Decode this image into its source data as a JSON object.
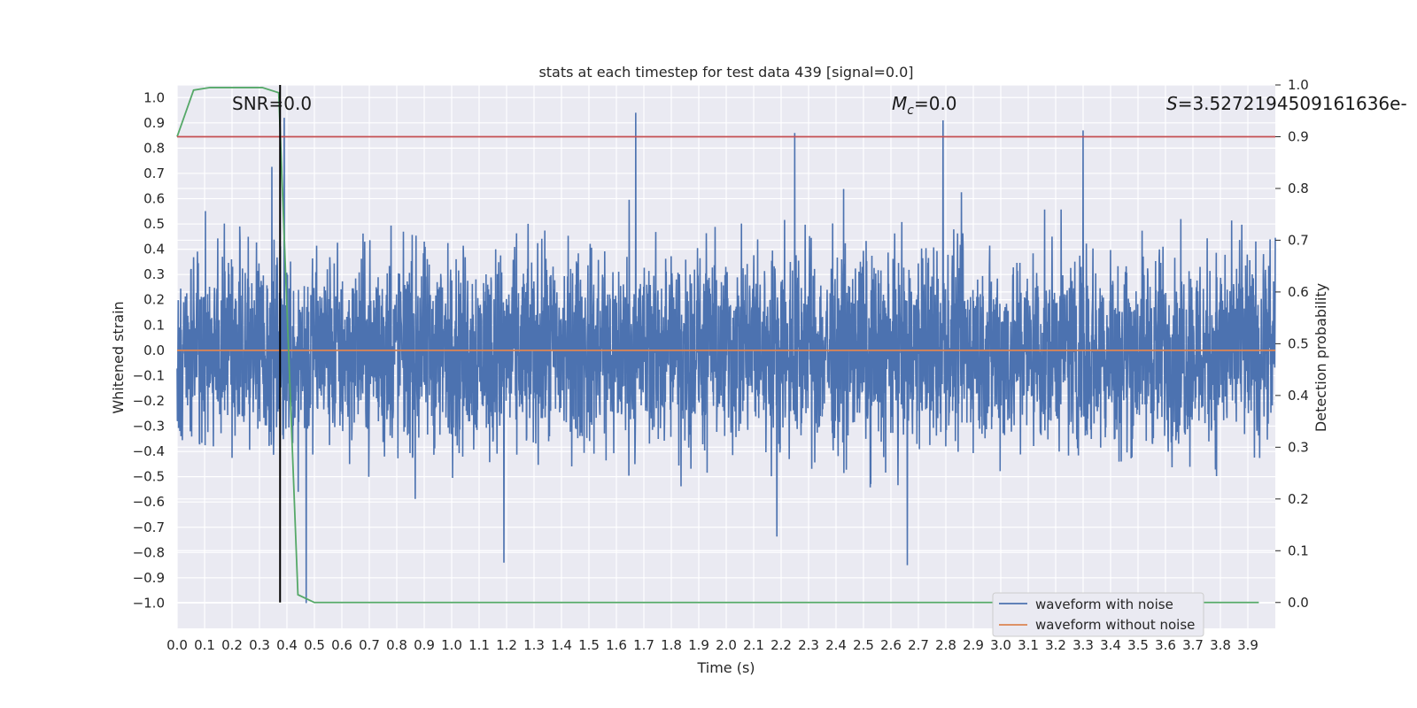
{
  "chart_data": {
    "type": "line",
    "title": "stats at each timestep for test data 439 [signal=0.0]",
    "xlabel": "Time (s)",
    "ylabel": "Whitened strain",
    "y2label": "Detection probability",
    "xlim": [
      0.0,
      4.0
    ],
    "ylim": [
      -1.1,
      1.05
    ],
    "y2lim": [
      -0.05,
      1.0
    ],
    "grid": true,
    "legend_position": "lower-right",
    "x_ticks": [
      "0.0",
      "0.1",
      "0.2",
      "0.3",
      "0.4",
      "0.5",
      "0.6",
      "0.7",
      "0.8",
      "0.9",
      "1.0",
      "1.1",
      "1.2",
      "1.3",
      "1.4",
      "1.5",
      "1.6",
      "1.7",
      "1.8",
      "1.9",
      "2.0",
      "2.1",
      "2.2",
      "2.3",
      "2.4",
      "2.5",
      "2.6",
      "2.7",
      "2.8",
      "2.9",
      "3.0",
      "3.1",
      "3.2",
      "3.3",
      "3.4",
      "3.5",
      "3.6",
      "3.7",
      "3.8",
      "3.9"
    ],
    "y_ticks": [
      "1.0",
      "0.9",
      "0.8",
      "0.7",
      "0.6",
      "0.5",
      "0.4",
      "0.3",
      "0.2",
      "0.1",
      "0.0",
      "−0.1",
      "−0.2",
      "−0.3",
      "−0.4",
      "−0.5",
      "−0.6",
      "−0.7",
      "−0.8",
      "−0.9",
      "−1.0"
    ],
    "y2_ticks": [
      "1.0",
      "0.9",
      "0.8",
      "0.7",
      "0.6",
      "0.5",
      "0.4",
      "0.3",
      "0.2",
      "0.1",
      "0.0"
    ],
    "annotations": {
      "snr": "SNR=0.0",
      "mc_symbol": "M",
      "mc_sub": "c",
      "mc_value": "=0.0",
      "s_symbol": "S",
      "s_value": "=3.527219450916163​6e-"
    },
    "series": [
      {
        "name": "waveform with noise",
        "color": "#4c72b0",
        "axis": "left",
        "description_type": "noise",
        "amplitude_typical": 0.35,
        "x_range": [
          0.0,
          4.0
        ],
        "peaks": [
          {
            "x": 1.67,
            "y": 0.94
          },
          {
            "x": 2.79,
            "y": 0.91
          },
          {
            "x": 3.3,
            "y": 0.87
          },
          {
            "x": 2.25,
            "y": 0.86
          },
          {
            "x": 0.39,
            "y": 0.92
          },
          {
            "x": 0.47,
            "y": -1.0
          },
          {
            "x": 1.19,
            "y": -0.84
          },
          {
            "x": 2.66,
            "y": -0.85
          }
        ]
      },
      {
        "name": "waveform without noise",
        "color": "#dd8452",
        "axis": "left",
        "x": [
          0.0,
          4.0
        ],
        "y": [
          0.0,
          0.0
        ]
      },
      {
        "name": "detection probability",
        "color": "#55a868",
        "axis": "right",
        "x": [
          0.0,
          0.06,
          0.12,
          0.19,
          0.31,
          0.37,
          0.44,
          0.5,
          3.94
        ],
        "y": [
          0.9,
          0.99,
          0.995,
          0.995,
          0.995,
          0.985,
          0.015,
          0.0,
          0.0
        ]
      },
      {
        "name": "threshold",
        "color": "#c44e52",
        "axis": "right",
        "x": [
          0.0,
          4.0
        ],
        "y": [
          0.9,
          0.9
        ]
      },
      {
        "name": "detection time",
        "color": "#000000",
        "axis": "right",
        "x": [
          0.375,
          0.375
        ],
        "y": [
          0.0,
          1.0
        ]
      }
    ],
    "legend": [
      "waveform with noise",
      "waveform without noise"
    ]
  }
}
